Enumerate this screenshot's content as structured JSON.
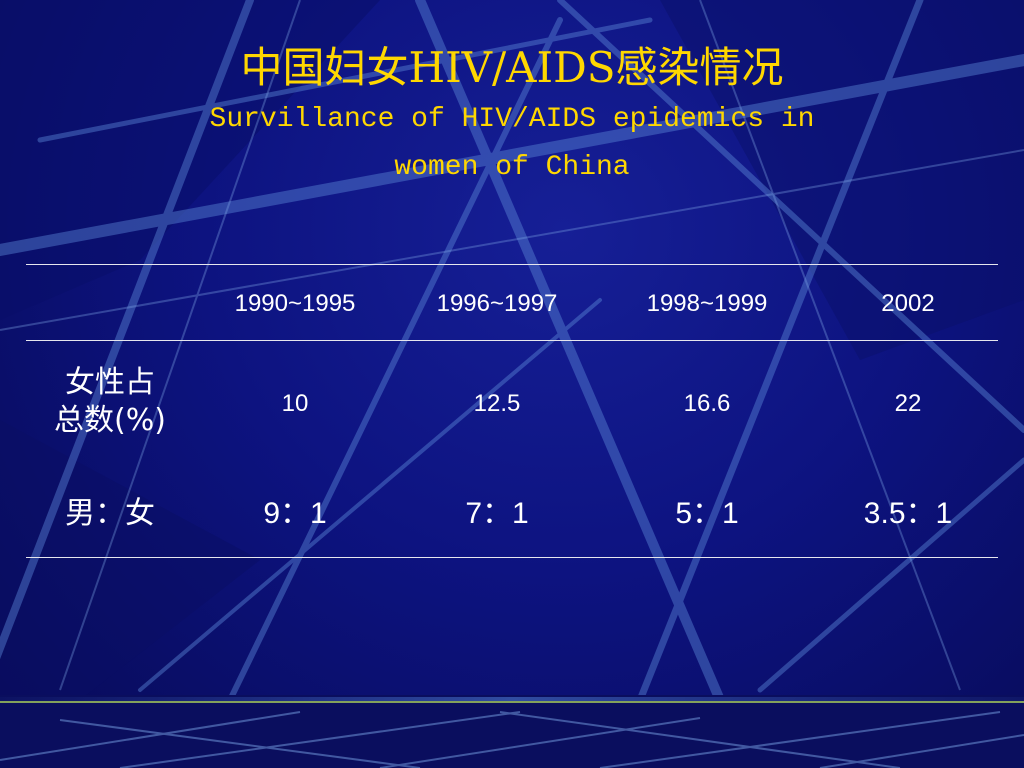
{
  "slide": {
    "title_cn": "中国妇女HIV/AIDS感染情况",
    "title_en_line1": "Survillance of HIV/AIDS epidemics in",
    "title_en_line2": "women of China"
  },
  "table": {
    "columns": [
      "1990~1995",
      "1996~1997",
      "1998~1999",
      "2002"
    ],
    "rows": [
      {
        "label_line1": "女性占",
        "label_line2": "总数(%)",
        "values": [
          "10",
          "12.5",
          "16.6",
          "22"
        ]
      },
      {
        "label_line1": "男：女",
        "values": [
          "9：1",
          "7：1",
          "5：1",
          "3.5：1"
        ]
      }
    ]
  },
  "colors": {
    "background": "#0c1175",
    "title": "#ffd700",
    "text": "#ffffff",
    "rule": "#e6e6ee"
  }
}
